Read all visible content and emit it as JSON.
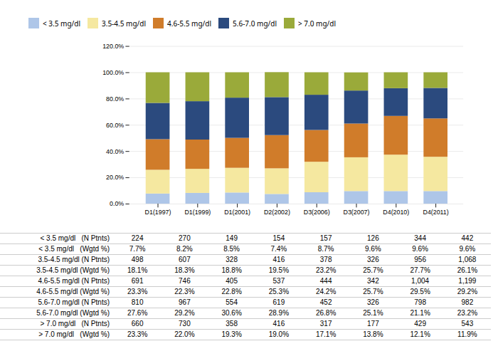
{
  "chart_data": {
    "type": "bar",
    "stacked": true,
    "categories": [
      "D1(1997)",
      "D1(1999)",
      "D1(2001)",
      "D2(2002)",
      "D3(2006)",
      "D3(2007)",
      "D4(2010)",
      "D4(2011)"
    ],
    "series": [
      {
        "name": "< 3.5 mg/dl",
        "color": "#aec6e8",
        "values": [
          7.7,
          8.2,
          8.5,
          7.4,
          8.7,
          9.6,
          9.6,
          9.6
        ]
      },
      {
        "name": "3.5-4.5 mg/dl",
        "color": "#f5e8a0",
        "values": [
          18.1,
          18.3,
          18.8,
          19.5,
          23.2,
          25.7,
          27.7,
          26.1
        ]
      },
      {
        "name": "4.6-5.5 mg/dl",
        "color": "#d07c2a",
        "values": [
          23.3,
          22.3,
          22.8,
          25.3,
          24.2,
          25.7,
          29.5,
          29.2
        ]
      },
      {
        "name": "5.6-7.0 mg/dl",
        "color": "#2b4a7e",
        "values": [
          27.6,
          29.2,
          30.6,
          28.9,
          26.8,
          25.1,
          21.1,
          23.2
        ]
      },
      {
        "name": "> 7.0 mg/dl",
        "color": "#9aaa3a",
        "values": [
          23.3,
          22.0,
          19.3,
          19.0,
          17.1,
          13.8,
          12.1,
          11.9
        ]
      }
    ],
    "ylim": [
      0,
      120
    ],
    "yticks": [
      {
        "value": 0,
        "label": "0.0%"
      },
      {
        "value": 20,
        "label": "20.0%"
      },
      {
        "value": 40,
        "label": "40.0%"
      },
      {
        "value": 60,
        "label": "60.0%"
      },
      {
        "value": 80,
        "label": "80.0%"
      },
      {
        "value": 100,
        "label": "100.0%"
      },
      {
        "value": 120,
        "label": "120.0%"
      }
    ],
    "grid": true,
    "legend": "top",
    "table": [
      {
        "name": "< 3.5 mg/dl   (N Ptnts)",
        "cells": [
          "224",
          "270",
          "149",
          "154",
          "157",
          "126",
          "344",
          "442"
        ]
      },
      {
        "name": "< 3.5 mg/dl   (Wgtd %)",
        "cells": [
          "7.7%",
          "8.2%",
          "8.5%",
          "7.4%",
          "8.7%",
          "9.6%",
          "9.6%",
          "9.6%"
        ]
      },
      {
        "name": "3.5-4.5 mg/dl (N Ptnts)",
        "cells": [
          "498",
          "607",
          "328",
          "416",
          "378",
          "326",
          "956",
          "1,068"
        ]
      },
      {
        "name": "3.5-4.5 mg/dl (Wgtd %)",
        "cells": [
          "18.1%",
          "18.3%",
          "18.8%",
          "19.5%",
          "23.2%",
          "25.7%",
          "27.7%",
          "26.1%"
        ]
      },
      {
        "name": "4.6-5.5 mg/dl (N Ptnts)",
        "cells": [
          "691",
          "746",
          "405",
          "537",
          "444",
          "342",
          "1,004",
          "1,199"
        ]
      },
      {
        "name": "4.6-5.5 mg/dl (Wgtd %)",
        "cells": [
          "23.3%",
          "22.3%",
          "22.8%",
          "25.3%",
          "24.2%",
          "25.7%",
          "29.5%",
          "29.2%"
        ]
      },
      {
        "name": "5.6-7.0 mg/dl (N Ptnts)",
        "cells": [
          "810",
          "967",
          "554",
          "619",
          "452",
          "326",
          "798",
          "982"
        ]
      },
      {
        "name": "5.6-7.0 mg/dl (Wgtd %)",
        "cells": [
          "27.6%",
          "29.2%",
          "30.6%",
          "28.9%",
          "26.8%",
          "25.1%",
          "21.1%",
          "23.2%"
        ]
      },
      {
        "name": "> 7.0 mg/dl   (N Ptnts)",
        "cells": [
          "660",
          "730",
          "358",
          "416",
          "317",
          "177",
          "429",
          "543"
        ]
      },
      {
        "name": "> 7.0 mg/dl   (Wgtd %)",
        "cells": [
          "23.3%",
          "22.0%",
          "19.3%",
          "19.0%",
          "17.1%",
          "13.8%",
          "12.1%",
          "11.9%"
        ]
      }
    ]
  }
}
